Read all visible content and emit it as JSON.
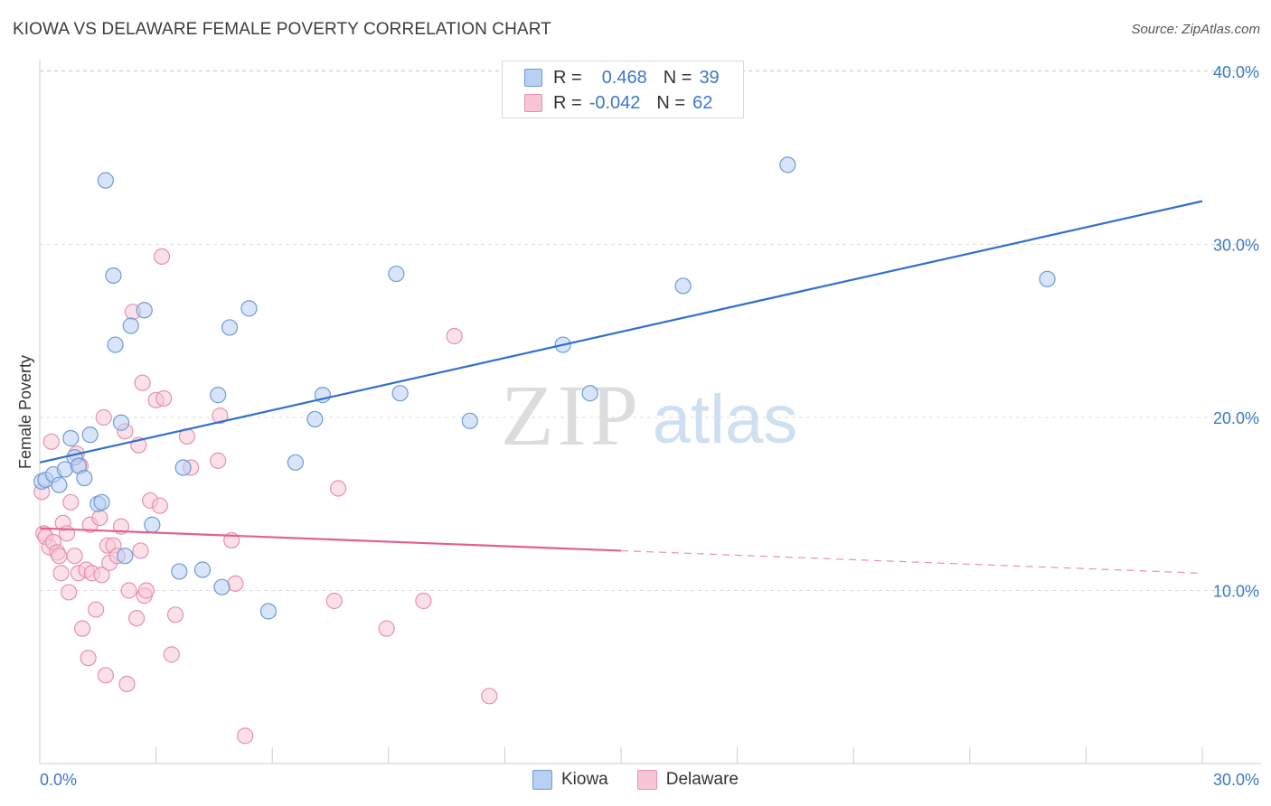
{
  "title": "KIOWA VS DELAWARE FEMALE POVERTY CORRELATION CHART",
  "source": "Source: ZipAtlas.com",
  "watermark": {
    "zip": "ZIP",
    "atlas": "atlas"
  },
  "colors": {
    "kiowa_fill": "#b8d0f2",
    "kiowa_stroke": "#6f9ad6",
    "kiowa_line": "#3070cc",
    "delaware_fill": "#f6c6d6",
    "delaware_stroke": "#e890ae",
    "delaware_line": "#e4608a",
    "axis_label": "#3b78c6",
    "grid": "#dddddd"
  },
  "legend_top": {
    "rows": [
      {
        "series": "Kiowa",
        "r_label": "R =",
        "r_value": "0.468",
        "n_label": "N =",
        "n_value": "39"
      },
      {
        "series": "Delaware",
        "r_label": "R =",
        "r_value": "-0.042",
        "n_label": "N =",
        "n_value": "62"
      }
    ]
  },
  "legend_bottom": {
    "items": [
      "Kiowa",
      "Delaware"
    ]
  },
  "chart_data": {
    "type": "scatter",
    "title": "KIOWA VS DELAWARE FEMALE POVERTY CORRELATION CHART",
    "xlabel": "",
    "ylabel": "Female Poverty",
    "xlim": [
      0,
      30
    ],
    "ylim": [
      0,
      40
    ],
    "x_tick_labels": [
      "0.0%",
      "30.0%"
    ],
    "y_ticks": [
      10,
      20,
      30,
      40
    ],
    "y_tick_labels": [
      "10.0%",
      "20.0%",
      "30.0%",
      "40.0%"
    ],
    "grid": true,
    "series": [
      {
        "name": "Kiowa",
        "points": [
          [
            0.05,
            16.3
          ],
          [
            0.15,
            16.4
          ],
          [
            0.35,
            16.7
          ],
          [
            0.5,
            16.1
          ],
          [
            0.65,
            17.0
          ],
          [
            0.8,
            18.8
          ],
          [
            0.9,
            17.7
          ],
          [
            1.0,
            17.2
          ],
          [
            1.15,
            16.5
          ],
          [
            1.3,
            19.0
          ],
          [
            1.5,
            15.0
          ],
          [
            1.6,
            15.1
          ],
          [
            1.7,
            33.7
          ],
          [
            1.9,
            28.2
          ],
          [
            1.95,
            24.2
          ],
          [
            2.1,
            19.7
          ],
          [
            2.2,
            12.0
          ],
          [
            2.35,
            25.3
          ],
          [
            2.7,
            26.2
          ],
          [
            2.9,
            13.8
          ],
          [
            3.6,
            11.1
          ],
          [
            3.7,
            17.1
          ],
          [
            4.2,
            11.2
          ],
          [
            4.6,
            21.3
          ],
          [
            4.7,
            10.2
          ],
          [
            4.9,
            25.2
          ],
          [
            5.4,
            26.3
          ],
          [
            5.9,
            8.8
          ],
          [
            6.6,
            17.4
          ],
          [
            7.1,
            19.9
          ],
          [
            7.3,
            21.3
          ],
          [
            9.2,
            28.3
          ],
          [
            9.3,
            21.4
          ],
          [
            11.1,
            19.8
          ],
          [
            13.5,
            24.2
          ],
          [
            14.2,
            21.4
          ],
          [
            16.6,
            27.6
          ],
          [
            19.3,
            34.6
          ],
          [
            26.0,
            28.0
          ]
        ],
        "trend": {
          "x0": 0,
          "y0": 17.4,
          "x1": 30,
          "y1": 32.5,
          "dashed_from": null
        }
      },
      {
        "name": "Delaware",
        "points": [
          [
            0.05,
            15.7
          ],
          [
            0.1,
            13.3
          ],
          [
            0.15,
            13.1
          ],
          [
            0.25,
            12.5
          ],
          [
            0.3,
            18.6
          ],
          [
            0.35,
            12.8
          ],
          [
            0.45,
            12.2
          ],
          [
            0.5,
            12.0
          ],
          [
            0.55,
            11.0
          ],
          [
            0.6,
            13.9
          ],
          [
            0.7,
            13.3
          ],
          [
            0.75,
            9.9
          ],
          [
            0.8,
            15.1
          ],
          [
            0.9,
            12.0
          ],
          [
            0.95,
            17.9
          ],
          [
            1.0,
            11.0
          ],
          [
            1.05,
            17.2
          ],
          [
            1.1,
            7.8
          ],
          [
            1.2,
            11.2
          ],
          [
            1.25,
            6.1
          ],
          [
            1.3,
            13.8
          ],
          [
            1.35,
            11.0
          ],
          [
            1.45,
            8.9
          ],
          [
            1.55,
            14.2
          ],
          [
            1.6,
            10.9
          ],
          [
            1.65,
            20.0
          ],
          [
            1.7,
            5.1
          ],
          [
            1.75,
            12.6
          ],
          [
            1.8,
            11.6
          ],
          [
            1.9,
            12.6
          ],
          [
            2.0,
            12.0
          ],
          [
            2.1,
            13.7
          ],
          [
            2.2,
            19.2
          ],
          [
            2.25,
            4.6
          ],
          [
            2.3,
            10.0
          ],
          [
            2.4,
            26.1
          ],
          [
            2.5,
            8.4
          ],
          [
            2.55,
            18.4
          ],
          [
            2.6,
            12.3
          ],
          [
            2.65,
            22.0
          ],
          [
            2.7,
            9.7
          ],
          [
            2.75,
            10.0
          ],
          [
            2.85,
            15.2
          ],
          [
            3.0,
            21.0
          ],
          [
            3.15,
            29.3
          ],
          [
            3.2,
            21.1
          ],
          [
            3.1,
            14.9
          ],
          [
            3.4,
            6.3
          ],
          [
            3.5,
            8.6
          ],
          [
            3.8,
            18.9
          ],
          [
            3.9,
            17.1
          ],
          [
            4.6,
            17.5
          ],
          [
            4.65,
            20.1
          ],
          [
            4.95,
            12.9
          ],
          [
            5.05,
            10.4
          ],
          [
            5.3,
            1.6
          ],
          [
            7.6,
            9.4
          ],
          [
            7.7,
            15.9
          ],
          [
            8.95,
            7.8
          ],
          [
            9.9,
            9.4
          ],
          [
            10.7,
            24.7
          ],
          [
            11.6,
            3.9
          ]
        ],
        "trend": {
          "x0": 0,
          "y0": 13.6,
          "x1": 30,
          "y1": 11.0,
          "dashed_from": 15.0
        }
      }
    ]
  }
}
